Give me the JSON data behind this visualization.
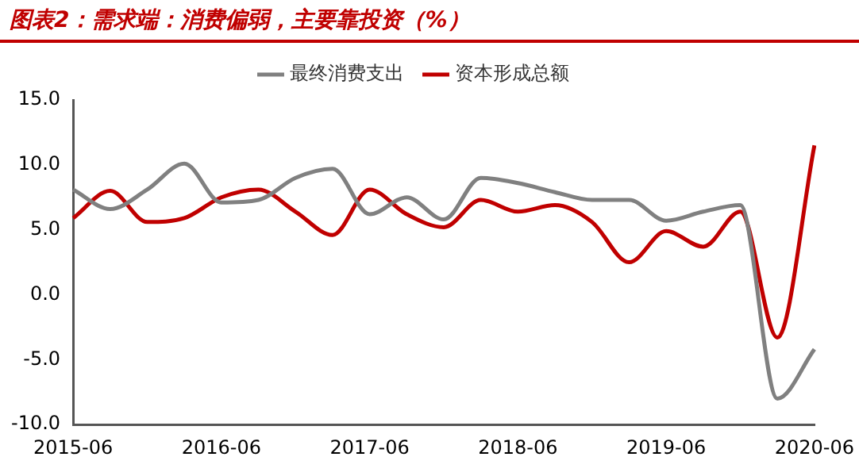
{
  "chart_data": {
    "type": "line",
    "title": "图表2：需求端：消费偏弱，主要靠投资（%）",
    "categories": [
      "2015-06",
      null,
      null,
      null,
      "2016-06",
      null,
      null,
      null,
      "2017-06",
      null,
      null,
      null,
      "2018-06",
      null,
      null,
      null,
      "2019-06",
      null,
      null,
      null,
      "2020-06"
    ],
    "series": [
      {
        "name": "最终消费支出",
        "color": "#808080",
        "values": [
          8.1,
          6.6,
          8.1,
          10.1,
          7.1,
          7.3,
          9.0,
          9.7,
          6.2,
          7.5,
          5.8,
          9.0,
          8.6,
          7.9,
          7.3,
          7.3,
          5.7,
          6.4,
          6.9,
          -8.0,
          -4.2
        ]
      },
      {
        "name": "资本形成总额",
        "color": "#c00000",
        "values": [
          5.9,
          8.0,
          5.6,
          5.9,
          7.5,
          8.1,
          6.4,
          4.6,
          8.1,
          6.2,
          5.2,
          7.3,
          6.4,
          6.9,
          5.6,
          2.5,
          4.9,
          3.7,
          6.4,
          -3.3,
          11.5
        ]
      }
    ],
    "ylim": [
      -10,
      15
    ],
    "yticks": [
      {
        "value": -10,
        "label": "-10.0"
      },
      {
        "value": -5,
        "label": "-5.0"
      },
      {
        "value": 0,
        "label": "0.0"
      },
      {
        "value": 5,
        "label": "5.0"
      },
      {
        "value": 10,
        "label": "10.0"
      },
      {
        "value": 15,
        "label": "15.0"
      }
    ],
    "grid": false,
    "legend": "top",
    "marker": "none",
    "line_style": "solid"
  }
}
